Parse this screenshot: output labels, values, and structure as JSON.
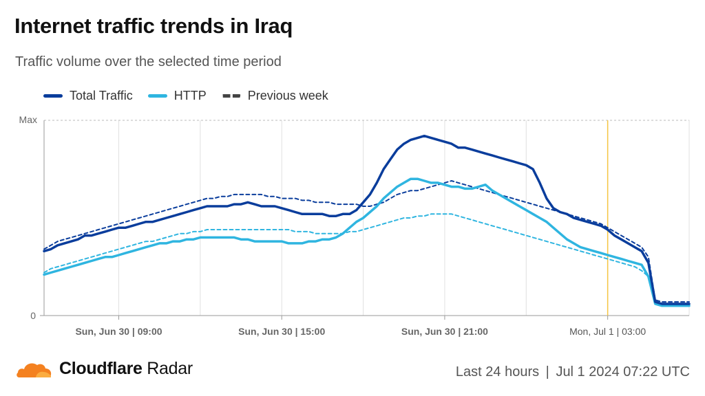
{
  "title": "Internet traffic trends in Iraq",
  "subtitle": "Traffic volume over the selected time period",
  "legend": [
    {
      "label": "Total Traffic",
      "color": "#0a3d9c",
      "style": "solid"
    },
    {
      "label": "HTTP",
      "color": "#2fb5e0",
      "style": "solid"
    },
    {
      "label": "Previous week",
      "color": "#444444",
      "style": "dashed"
    }
  ],
  "footer": {
    "brand_bold": "Cloudflare",
    "brand_rest": " Radar",
    "range": "Last 24 hours",
    "separator": "|",
    "timestamp": "Jul 1 2024 07:22 UTC"
  },
  "colors": {
    "total": "#0a3d9c",
    "http": "#2fb5e0",
    "total_prev": "#0a3d9c",
    "http_prev": "#2fb5e0",
    "marker": "#f5c542",
    "logo": "#f48120"
  },
  "chart_data": {
    "type": "line",
    "y_tick_labels": [
      "Max",
      "0"
    ],
    "ylim": [
      0,
      100
    ],
    "xlim": [
      0,
      95
    ],
    "x_unit": "15-minute intervals",
    "x_ticks": [
      {
        "x": 11,
        "label": "Sun, Jun 30 | 09:00",
        "bold": true
      },
      {
        "x": 35,
        "label": "Sun, Jun 30 | 15:00",
        "bold": true
      },
      {
        "x": 59,
        "label": "Sun, Jun 30 | 21:00",
        "bold": true
      },
      {
        "x": 83,
        "label": "Mon, Jul 1 | 03:00",
        "bold": false
      }
    ],
    "marker_x": 83,
    "grid_x": [
      11,
      23,
      35,
      47,
      59,
      71,
      83,
      95
    ],
    "series": [
      {
        "name": "Total Traffic",
        "key": "total",
        "dashed": false,
        "values": [
          33,
          34,
          36,
          37,
          38,
          39,
          41,
          41,
          42,
          43,
          44,
          45,
          45,
          46,
          47,
          48,
          48,
          49,
          50,
          51,
          52,
          53,
          54,
          55,
          56,
          56,
          56,
          56,
          57,
          57,
          58,
          57,
          56,
          56,
          56,
          55,
          54,
          53,
          52,
          52,
          52,
          52,
          51,
          51,
          52,
          52,
          54,
          58,
          62,
          68,
          75,
          80,
          85,
          88,
          90,
          91,
          92,
          91,
          90,
          89,
          88,
          86,
          86,
          85,
          84,
          83,
          82,
          81,
          80,
          79,
          78,
          77,
          75,
          68,
          60,
          55,
          53,
          52,
          50,
          49,
          48,
          47,
          46,
          44,
          41,
          39,
          37,
          35,
          33,
          27,
          7,
          6,
          6,
          6,
          6,
          6
        ]
      },
      {
        "name": "HTTP",
        "key": "http",
        "dashed": false,
        "values": [
          21,
          22,
          23,
          24,
          25,
          26,
          27,
          28,
          29,
          30,
          30,
          31,
          32,
          33,
          34,
          35,
          36,
          37,
          37,
          38,
          38,
          39,
          39,
          40,
          40,
          40,
          40,
          40,
          40,
          39,
          39,
          38,
          38,
          38,
          38,
          38,
          37,
          37,
          37,
          38,
          38,
          39,
          39,
          40,
          42,
          45,
          48,
          50,
          53,
          56,
          60,
          63,
          66,
          68,
          70,
          70,
          69,
          68,
          68,
          67,
          66,
          66,
          65,
          65,
          66,
          67,
          64,
          62,
          60,
          58,
          56,
          54,
          52,
          50,
          48,
          45,
          42,
          39,
          37,
          35,
          34,
          33,
          32,
          31,
          30,
          29,
          28,
          27,
          26,
          20,
          6,
          5,
          5,
          5,
          5,
          5
        ]
      },
      {
        "name": "",
        "key": "total_prev",
        "dashed": true,
        "values": [
          34,
          36,
          38,
          39,
          40,
          41,
          42,
          43,
          44,
          45,
          46,
          47,
          48,
          49,
          50,
          51,
          52,
          53,
          54,
          55,
          56,
          57,
          58,
          59,
          60,
          60,
          61,
          61,
          62,
          62,
          62,
          62,
          62,
          61,
          61,
          60,
          60,
          60,
          59,
          59,
          58,
          58,
          58,
          57,
          57,
          57,
          57,
          56,
          56,
          57,
          58,
          60,
          62,
          63,
          64,
          64,
          65,
          66,
          67,
          68,
          69,
          68,
          67,
          66,
          65,
          64,
          63,
          62,
          61,
          60,
          59,
          58,
          57,
          56,
          55,
          54,
          53,
          52,
          51,
          50,
          49,
          48,
          47,
          45,
          43,
          41,
          39,
          37,
          35,
          30,
          8,
          7,
          7,
          7,
          7,
          7
        ]
      },
      {
        "name": "",
        "key": "http_prev",
        "dashed": true,
        "values": [
          22,
          24,
          25,
          26,
          27,
          28,
          29,
          30,
          31,
          32,
          33,
          34,
          35,
          36,
          37,
          38,
          38,
          39,
          40,
          41,
          42,
          42,
          43,
          43,
          44,
          44,
          44,
          44,
          44,
          44,
          44,
          44,
          44,
          44,
          44,
          44,
          44,
          43,
          43,
          43,
          42,
          42,
          42,
          42,
          42,
          43,
          43,
          44,
          45,
          46,
          47,
          48,
          49,
          50,
          50,
          51,
          51,
          52,
          52,
          52,
          52,
          51,
          50,
          49,
          48,
          47,
          46,
          45,
          44,
          43,
          42,
          41,
          40,
          39,
          38,
          37,
          36,
          35,
          34,
          33,
          32,
          31,
          30,
          29,
          28,
          27,
          26,
          25,
          23,
          20,
          6,
          5,
          5,
          5,
          5,
          5
        ]
      }
    ]
  }
}
